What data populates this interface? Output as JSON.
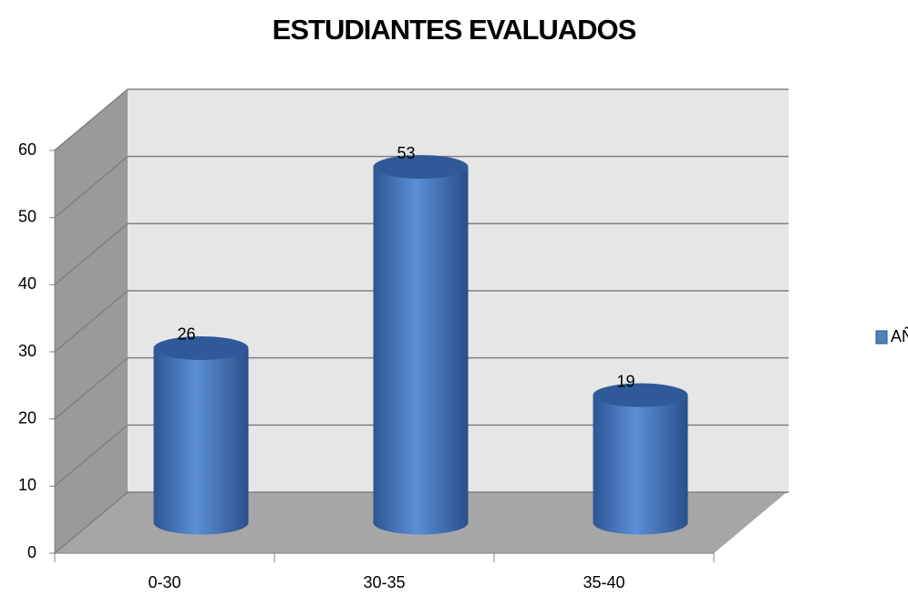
{
  "chart_data": {
    "type": "bar3d",
    "title": "ESTUDIANTES EVALUADOS",
    "categories": [
      "0-30",
      "30-35",
      "35-40"
    ],
    "series": [
      {
        "name": "AÑO",
        "color": "#4f81bd",
        "values": [
          26,
          53,
          19
        ]
      }
    ],
    "ylim": [
      0,
      60
    ],
    "yticks": [
      0,
      10,
      20,
      30,
      40,
      50,
      60
    ],
    "grid": true,
    "legend": "right"
  }
}
